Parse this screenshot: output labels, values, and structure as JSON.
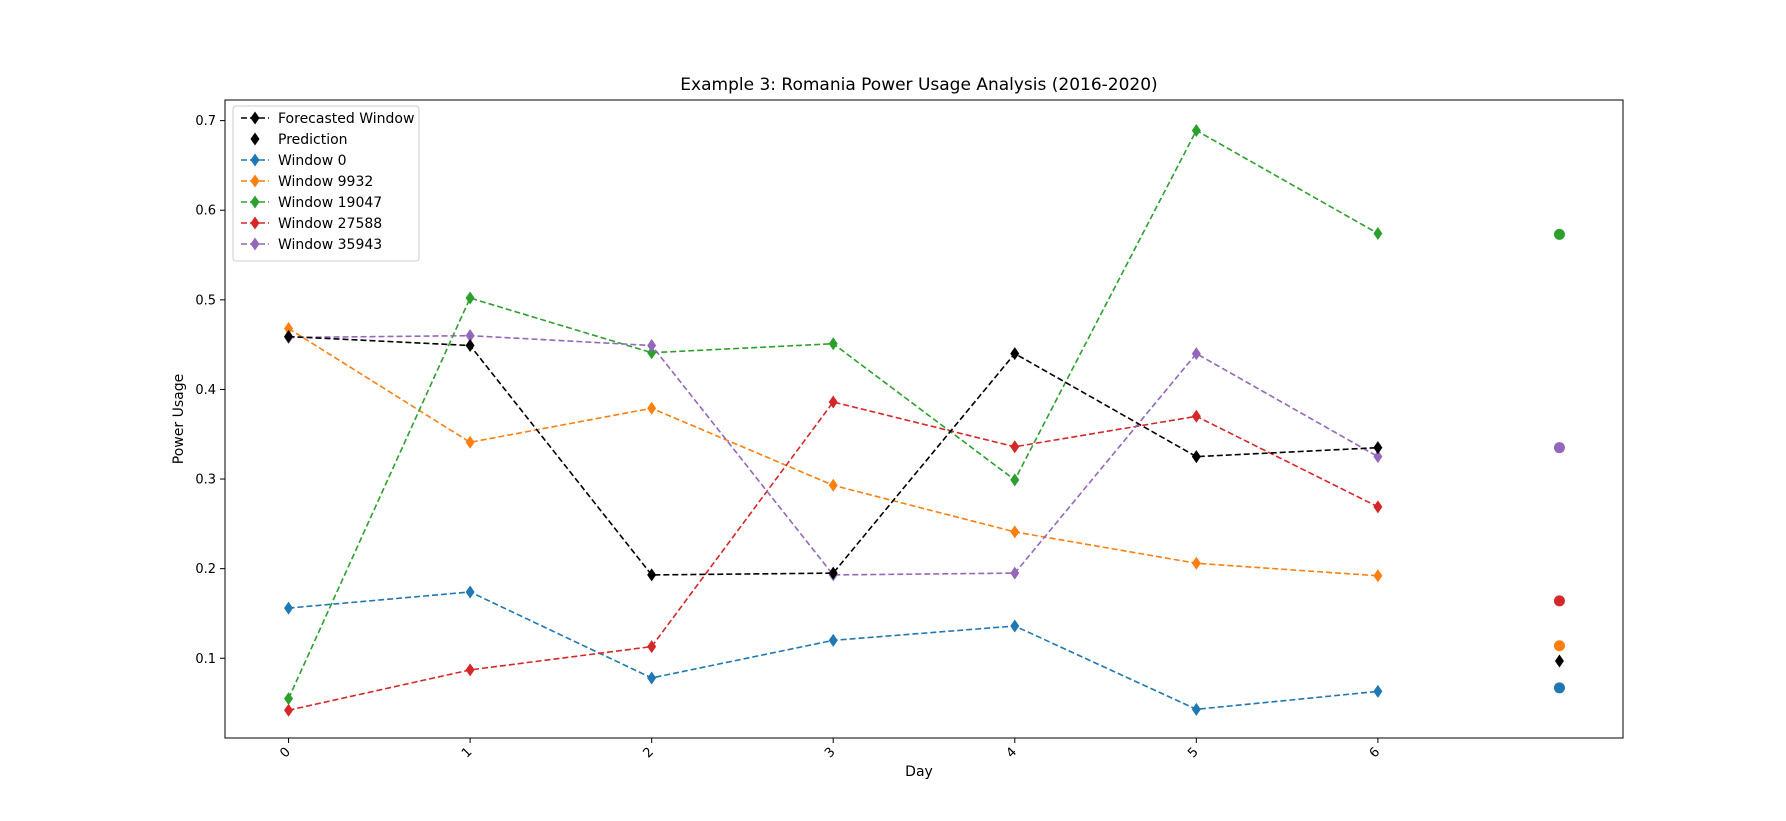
{
  "chart_data": {
    "type": "line",
    "title": "Example 3: Romania Power Usage Analysis (2016-2020)",
    "xlabel": "Day",
    "ylabel": "Power Usage",
    "x": [
      0,
      1,
      2,
      3,
      4,
      5,
      6
    ],
    "x_tick_labels": [
      "0",
      "1",
      "2",
      "3",
      "4",
      "5",
      "6"
    ],
    "xlim": [
      -0.35,
      7.35
    ],
    "y_ticks": [
      0.1,
      0.2,
      0.3,
      0.4,
      0.5,
      0.6,
      0.7
    ],
    "y_tick_labels": [
      "0.1",
      "0.2",
      "0.3",
      "0.4",
      "0.5",
      "0.6",
      "0.7"
    ],
    "ylim": [
      0.011,
      0.723
    ],
    "grid": false,
    "legend_position": "top-left",
    "prediction_x": 7,
    "series": [
      {
        "name": "Forecasted Window",
        "color": "#000000",
        "linestyle": "dashed",
        "marker": "diamond",
        "values": [
          0.459,
          0.449,
          0.193,
          0.195,
          0.44,
          0.325,
          0.335
        ]
      },
      {
        "name": "Prediction",
        "color": "#000000",
        "linestyle": "none",
        "marker": "diamond",
        "points": [
          {
            "x": 7,
            "y": 0.097
          }
        ]
      },
      {
        "name": "Window 0",
        "color": "#1f77b4",
        "linestyle": "dashed",
        "marker": "diamond",
        "values": [
          0.156,
          0.174,
          0.078,
          0.12,
          0.136,
          0.043,
          0.063
        ],
        "prediction": 0.067
      },
      {
        "name": "Window 9932",
        "color": "#ff7f0e",
        "linestyle": "dashed",
        "marker": "diamond",
        "values": [
          0.468,
          0.341,
          0.379,
          0.293,
          0.241,
          0.206,
          0.192
        ],
        "prediction": 0.114
      },
      {
        "name": "Window 19047",
        "color": "#2ca02c",
        "linestyle": "dashed",
        "marker": "diamond",
        "values": [
          0.055,
          0.502,
          0.441,
          0.451,
          0.299,
          0.689,
          0.574
        ],
        "prediction": 0.573
      },
      {
        "name": "Window 27588",
        "color": "#d62728",
        "linestyle": "dashed",
        "marker": "diamond",
        "values": [
          0.042,
          0.087,
          0.113,
          0.386,
          0.336,
          0.37,
          0.269
        ],
        "prediction": 0.164
      },
      {
        "name": "Window 35943",
        "color": "#9467bd",
        "linestyle": "dashed",
        "marker": "diamond",
        "values": [
          0.458,
          0.46,
          0.449,
          0.193,
          0.195,
          0.44,
          0.325
        ],
        "prediction": 0.335
      }
    ]
  }
}
